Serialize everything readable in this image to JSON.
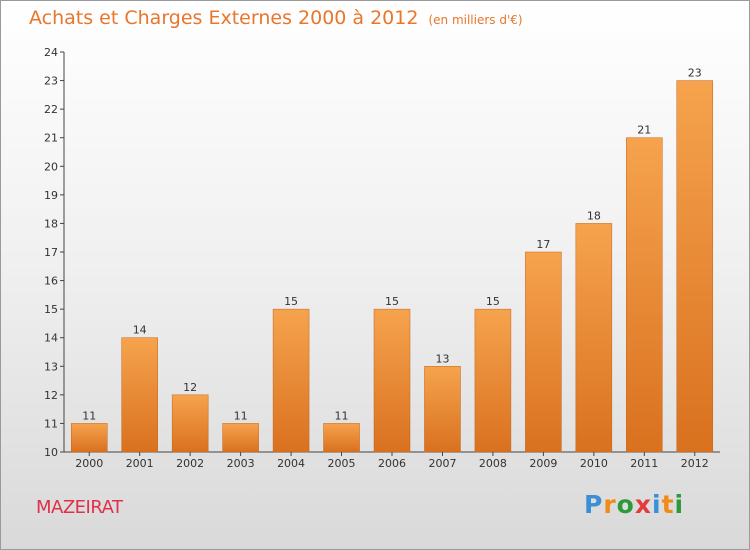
{
  "header": {
    "title": "Achats et Charges Externes 2000 à 2012",
    "unit": "(en milliers d'€)"
  },
  "footer": {
    "town": "MAZEIRAT",
    "brand_letters": [
      "P",
      "r",
      "o",
      "x",
      "i",
      "t",
      "i"
    ],
    "brand_colors": [
      "#3a8fd6",
      "#f28a1a",
      "#2c9a3a",
      "#e23c3c",
      "#3a8fd6",
      "#f28a1a",
      "#2c9a3a"
    ]
  },
  "colors": {
    "bar_light": "#f6a34e",
    "bar_dark": "#d9711f",
    "title": "#e8762b",
    "town": "#e0304a"
  },
  "chart_data": {
    "type": "bar",
    "title": "Achats et Charges Externes 2000 à 2012",
    "subtitle": "(en milliers d'€)",
    "xlabel": "",
    "ylabel": "",
    "categories": [
      "2000",
      "2001",
      "2002",
      "2003",
      "2004",
      "2005",
      "2006",
      "2007",
      "2008",
      "2009",
      "2010",
      "2011",
      "2012"
    ],
    "values": [
      11,
      14,
      12,
      11,
      15,
      11,
      15,
      13,
      15,
      17,
      18,
      21,
      23
    ],
    "ylim": [
      10,
      24
    ],
    "yticks": [
      10,
      11,
      12,
      13,
      14,
      15,
      16,
      17,
      18,
      19,
      20,
      21,
      22,
      23,
      24
    ],
    "grid": false,
    "data_labels": true
  }
}
